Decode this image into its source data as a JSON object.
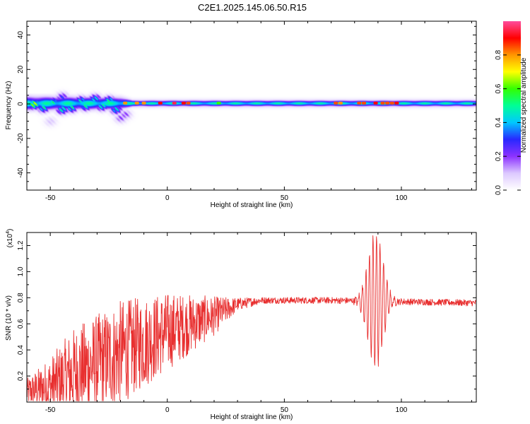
{
  "title": "C2E1.2025.145.06.50.R15",
  "colors": {
    "signal": "#e83030",
    "axis": "#000000",
    "colormap": [
      "#ffffff",
      "#dcc8ff",
      "#8c32ff",
      "#2828ff",
      "#00c8ff",
      "#00ff96",
      "#32ff00",
      "#ffff00",
      "#ff9600",
      "#ff0000",
      "#ff4b9b"
    ]
  },
  "chart_data": [
    {
      "type": "heatmap",
      "xlabel": "Height of straight line (km)",
      "ylabel": "Frequency (Hz)",
      "xlim": [
        -60,
        132
      ],
      "ylim": [
        -50,
        48
      ],
      "x_ticks": [
        "-50",
        "0",
        "50",
        "100"
      ],
      "y_ticks": [
        "40",
        "20",
        "0",
        "-20",
        "-40"
      ],
      "colorbar": {
        "label": "Normalized spectral amplitude",
        "range": [
          0,
          1
        ],
        "ticks": [
          "0.0",
          "0.2",
          "0.4",
          "0.6",
          "0.8"
        ]
      },
      "band": {
        "center_hz": 0.5,
        "halfwidth_hz": [
          {
            "x": -60,
            "core": 3.5,
            "halo": 6
          },
          {
            "x": -20,
            "core": 3,
            "halo": 6
          },
          {
            "x": -15,
            "core": 1.5,
            "halo": 4
          },
          {
            "x": 132,
            "core": 1.5,
            "halo": 4
          }
        ]
      },
      "clusters": [
        {
          "x": -57,
          "y": 0,
          "amp": 0.7
        },
        {
          "x": -53,
          "y": -2,
          "amp": 0.5
        },
        {
          "x": -49,
          "y": 1,
          "amp": 0.5
        },
        {
          "x": -45,
          "y": -3,
          "amp": 0.5
        },
        {
          "x": -41,
          "y": -2,
          "amp": 0.5
        },
        {
          "x": -37,
          "y": 2,
          "amp": 0.45
        },
        {
          "x": -35,
          "y": -1,
          "amp": 0.5
        },
        {
          "x": -31,
          "y": 3,
          "amp": 0.45
        },
        {
          "x": -28,
          "y": -1,
          "amp": 0.5
        },
        {
          "x": -25,
          "y": 2,
          "amp": 0.5
        },
        {
          "x": -22,
          "y": -3,
          "amp": 0.45
        },
        {
          "x": -20,
          "y": -8,
          "amp": 0.2
        },
        {
          "x": -18,
          "y": -6,
          "amp": 0.2
        },
        {
          "x": -50,
          "y": -10,
          "amp": 0.1
        },
        {
          "x": -45,
          "y": 4,
          "amp": 0.3
        }
      ],
      "peaks": [
        {
          "x": -18,
          "amp": 0.8
        },
        {
          "x": -13,
          "amp": 0.8
        },
        {
          "x": -10,
          "amp": 0.8
        },
        {
          "x": -3,
          "amp": 0.9
        },
        {
          "x": 3,
          "amp": 0.95
        },
        {
          "x": 7,
          "amp": 0.9
        },
        {
          "x": 9,
          "amp": 0.85
        },
        {
          "x": 22,
          "amp": 0.6
        },
        {
          "x": 72,
          "amp": 0.85
        },
        {
          "x": 74,
          "amp": 0.8
        },
        {
          "x": 82,
          "amp": 0.85
        },
        {
          "x": 84,
          "amp": 0.85
        },
        {
          "x": 89,
          "amp": 0.9
        },
        {
          "x": 92,
          "amp": 0.85
        },
        {
          "x": 94,
          "amp": 0.85
        },
        {
          "x": 96,
          "amp": 0.85
        },
        {
          "x": 98,
          "amp": 0.9
        }
      ]
    },
    {
      "type": "line",
      "xlabel": "Height of straight line (km)",
      "ylabel": "SNR (10 * v/v)",
      "y_multiplier": "(x10",
      "y_multiplier_exp": "4",
      "y_multiplier_close": ")",
      "xlim": [
        -60,
        132
      ],
      "ylim": [
        0,
        1.3
      ],
      "x_ticks": [
        "-50",
        "0",
        "50",
        "100"
      ],
      "y_ticks": [
        "0.2",
        "0.4",
        "0.6",
        "0.8",
        "1.0",
        "1.2"
      ],
      "series": [
        {
          "trend": [
            {
              "x": -60,
              "y": 0.08
            },
            {
              "x": -50,
              "y": 0.12
            },
            {
              "x": -40,
              "y": 0.22
            },
            {
              "x": -30,
              "y": 0.3
            },
            {
              "x": -20,
              "y": 0.38
            },
            {
              "x": -10,
              "y": 0.46
            },
            {
              "x": 0,
              "y": 0.54
            },
            {
              "x": 10,
              "y": 0.6
            },
            {
              "x": 20,
              "y": 0.66
            },
            {
              "x": 30,
              "y": 0.75
            },
            {
              "x": 40,
              "y": 0.78
            },
            {
              "x": 70,
              "y": 0.78
            },
            {
              "x": 132,
              "y": 0.76
            }
          ],
          "noise_amplitude": [
            {
              "x": -60,
              "y": 0.1
            },
            {
              "x": -40,
              "y": 0.35
            },
            {
              "x": -20,
              "y": 0.4
            },
            {
              "x": 0,
              "y": 0.3
            },
            {
              "x": 20,
              "y": 0.15
            },
            {
              "x": 30,
              "y": 0.05
            },
            {
              "x": 40,
              "y": 0.025
            },
            {
              "x": 132,
              "y": 0.025
            }
          ],
          "oscillation": {
            "x_start": 74,
            "x_end": 102,
            "center": 89,
            "width": 4.5,
            "amplitude": 0.52,
            "period": 1.5
          }
        }
      ]
    }
  ]
}
